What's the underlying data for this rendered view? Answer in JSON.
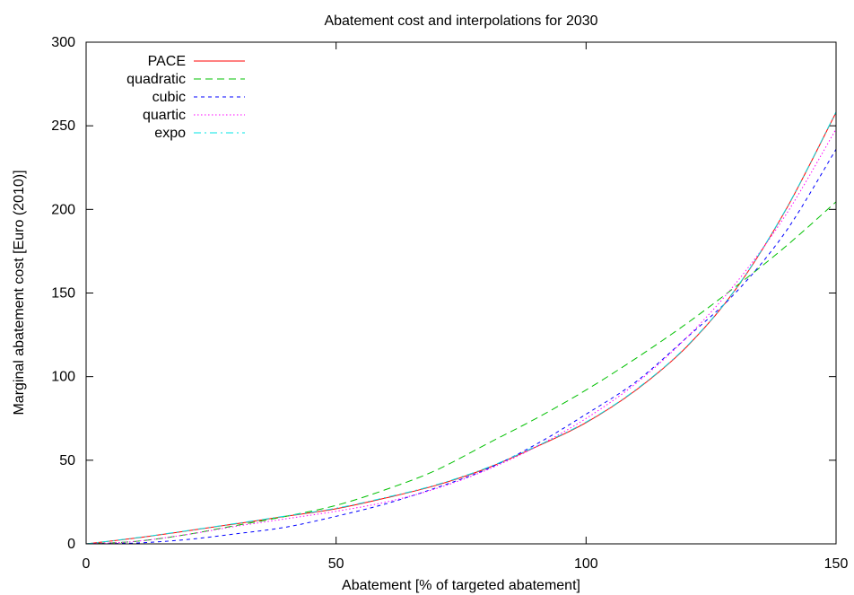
{
  "chart_data": {
    "type": "line",
    "title": "Abatement cost and interpolations for 2030",
    "xlabel": "Abatement [% of targeted abatement]",
    "ylabel": "Marginal abatement cost [Euro (2010)]",
    "xlim": [
      0,
      150
    ],
    "ylim": [
      0,
      300
    ],
    "xticks": [
      0,
      50,
      100,
      150
    ],
    "yticks": [
      0,
      50,
      100,
      150,
      200,
      250,
      300
    ],
    "grid": false,
    "legend_position": "top-left",
    "x": [
      0,
      10,
      20,
      30,
      40,
      50,
      60,
      70,
      80,
      90,
      100,
      110,
      120,
      130,
      140,
      150
    ],
    "series": [
      {
        "name": "PACE",
        "color": "#ff0000",
        "dash": "solid",
        "values": [
          0,
          3.5,
          7.7,
          12.0,
          16.5,
          21.0,
          27.5,
          35.0,
          45.0,
          58.0,
          72.5,
          92.0,
          117.5,
          152.5,
          200.0,
          258.0
        ]
      },
      {
        "name": "quadratic",
        "color": "#00c000",
        "dash": "dashed",
        "values": [
          0,
          1.5,
          5.5,
          11.0,
          16.5,
          23.0,
          32.5,
          44.0,
          59.5,
          75.0,
          92.0,
          111.0,
          131.5,
          154.0,
          178.0,
          204.5
        ]
      },
      {
        "name": "cubic",
        "color": "#0000ff",
        "dash": "short-dash",
        "values": [
          0,
          0.5,
          2.5,
          6.0,
          10.0,
          16.5,
          24.0,
          33.5,
          44.5,
          59.5,
          77.5,
          97.0,
          123.0,
          150.5,
          187.0,
          236.0
        ]
      },
      {
        "name": "quartic",
        "color": "#ff00ff",
        "dash": "dotted",
        "values": [
          0,
          1.5,
          5.5,
          10.5,
          15.0,
          19.5,
          25.0,
          33.0,
          44.0,
          58.0,
          75.0,
          96.0,
          123.0,
          156.0,
          197.0,
          248.0
        ]
      },
      {
        "name": "expo",
        "color": "#00e5e5",
        "dash": "dash-dot",
        "values": [
          0,
          3.6,
          7.8,
          12.2,
          16.7,
          21.3,
          27.8,
          35.3,
          45.3,
          58.3,
          72.8,
          92.3,
          117.8,
          152.8,
          200.3,
          258.3
        ]
      }
    ]
  }
}
